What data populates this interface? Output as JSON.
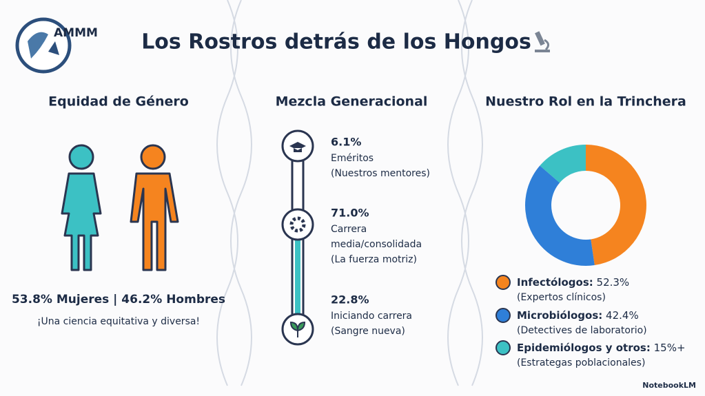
{
  "header": {
    "logo_text": "AMMM",
    "title": "Los Rostros detrás de los Hongos"
  },
  "gender": {
    "title": "Equidad de Género",
    "stats": "53.8% Mujeres | 46.2% Hombres",
    "caption": "¡Una ciencia equitativa y diversa!"
  },
  "generations": {
    "title": "Mezcla Generacional",
    "items": [
      {
        "percent": "6.1%",
        "lines": [
          "Eméritos",
          "(Nuestros mentores)"
        ]
      },
      {
        "percent": "71.0%",
        "lines": [
          "Carrera",
          "media/consolidada",
          "(La fuerza motriz)"
        ]
      },
      {
        "percent": "22.8%",
        "lines": [
          "Iniciando carrera",
          "(Sangre nueva)"
        ]
      }
    ]
  },
  "roles": {
    "title": "Nuestro Rol en la Trinchera",
    "items": [
      {
        "name": "Infectólogos:",
        "value": 52.3,
        "label": "52.3%",
        "note": "(Expertos clínicos)",
        "color": "#f5841f"
      },
      {
        "name": "Microbiólogos:",
        "value": 42.4,
        "label": "42.4%",
        "note": "(Detectives de laboratorio)",
        "color": "#2f7fd8"
      },
      {
        "name": "Epidemiólogos y otros:",
        "value": 15,
        "label": "15%+",
        "note": "(Estrategas poblacionales)",
        "color": "#3cc1c4"
      }
    ]
  },
  "footer": {
    "watermark": "NotebookLM"
  }
}
